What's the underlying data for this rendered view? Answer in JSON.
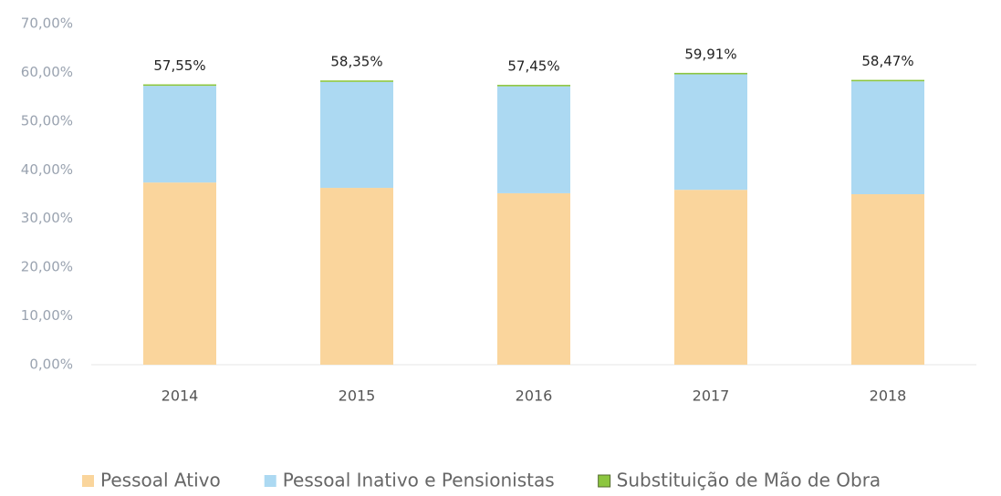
{
  "chart_data": {
    "type": "stacked_bar",
    "categories": [
      "2014",
      "2015",
      "2016",
      "2017",
      "2018"
    ],
    "series": [
      {
        "name": "Pessoal Ativo",
        "color": "#fad59c",
        "values": [
          37.4,
          36.3,
          35.2,
          35.9,
          35.0
        ]
      },
      {
        "name": "Pessoal Inativo e Pensionistas",
        "color": "#acd9f2",
        "values": [
          19.85,
          21.75,
          21.95,
          23.71,
          23.17
        ]
      },
      {
        "name": "Substituição de Mão de Obra",
        "color": "#8cc63f",
        "values": [
          0.3,
          0.3,
          0.3,
          0.3,
          0.3
        ]
      }
    ],
    "totals": [
      57.55,
      58.35,
      57.45,
      59.91,
      58.47
    ],
    "total_labels": [
      "57,55%",
      "58,35%",
      "57,45%",
      "59,91%",
      "58,47%"
    ],
    "ylim": [
      0,
      70
    ],
    "yticks": [
      {
        "value": 0,
        "label": "0,00%"
      },
      {
        "value": 10,
        "label": "10,00%"
      },
      {
        "value": 20,
        "label": "20,00%"
      },
      {
        "value": 30,
        "label": "30,00%"
      },
      {
        "value": 40,
        "label": "40,00%"
      },
      {
        "value": 50,
        "label": "50,00%"
      },
      {
        "value": 60,
        "label": "60,00%"
      },
      {
        "value": 70,
        "label": "70,00%"
      }
    ],
    "legend": "bottom"
  }
}
